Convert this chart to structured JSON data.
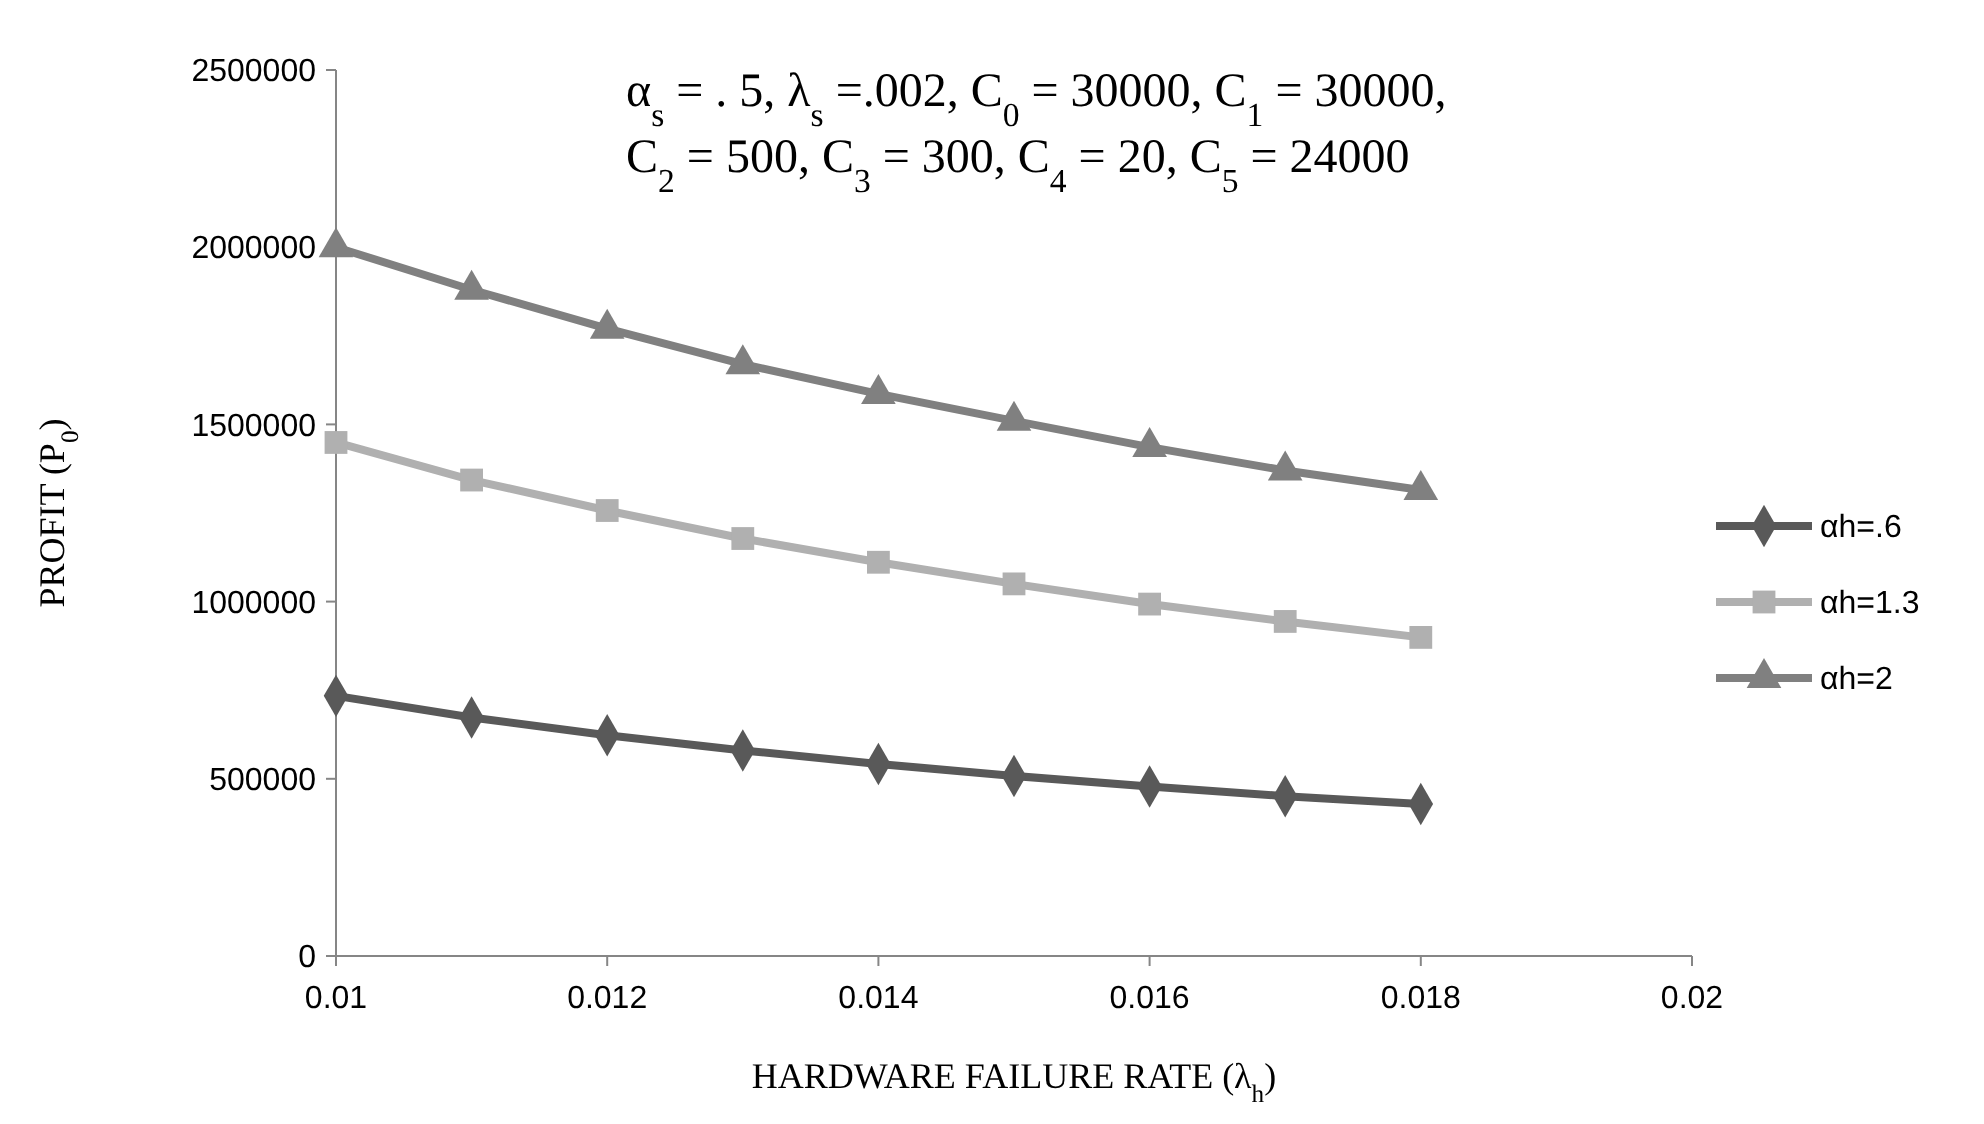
{
  "chart_data": {
    "type": "line",
    "xlabel": "HARDWARE FAILURE RATE (λ$_{h}$)",
    "ylabel": "PROFIT (P$_{0}$)",
    "annotations": [
      "α$_{s}$ = . 5, λ$_{s}$ =.002, C$_{0}$ = 30000, C$_{1}$ = 30000,",
      "C$_{2}$ = 500, C$_{3}$ = 300, C$_{4}$ = 20, C$_{5}$ = 24000"
    ],
    "x": [
      0.01,
      0.011,
      0.012,
      0.013,
      0.014,
      0.015,
      0.016,
      0.017,
      0.018
    ],
    "series": [
      {
        "name": "αh=.6",
        "color": "#595959",
        "marker": "diamond",
        "values": [
          734000,
          673000,
          623000,
          580000,
          542000,
          508000,
          478000,
          451000,
          429000
        ]
      },
      {
        "name": "αh=1.3",
        "color": "#b0b0b0",
        "marker": "square",
        "values": [
          1449000,
          1343000,
          1257000,
          1178000,
          1111000,
          1050000,
          993000,
          944000,
          899000
        ]
      },
      {
        "name": "αh=2",
        "color": "#808080",
        "marker": "triangle",
        "values": [
          2000000,
          1880000,
          1770000,
          1670000,
          1586000,
          1510000,
          1436000,
          1370000,
          1315000
        ]
      }
    ],
    "xlim": [
      0.01,
      0.02
    ],
    "xticks": [
      0.01,
      0.012,
      0.014,
      0.016,
      0.018,
      0.02
    ],
    "ylim": [
      0,
      2500000
    ],
    "yticks": [
      0,
      500000,
      1000000,
      1500000,
      2000000,
      2500000
    ],
    "grid": false,
    "legend": "right",
    "line_style": "solid"
  }
}
